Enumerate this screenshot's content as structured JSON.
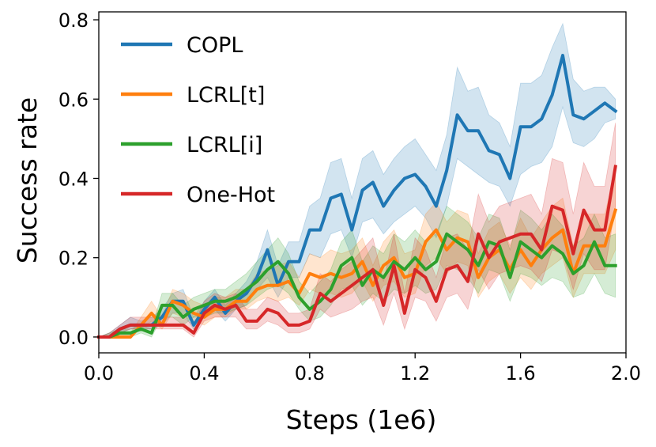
{
  "chart_data": {
    "type": "line",
    "title": "",
    "xlabel": "Steps (1e6)",
    "ylabel": "Success rate",
    "xlim": [
      0.0,
      2.0
    ],
    "ylim": [
      -0.04,
      0.82
    ],
    "xticks": [
      "0.0",
      "0.4",
      "0.8",
      "1.2",
      "1.6",
      "2.0"
    ],
    "xtick_values": [
      0.0,
      0.4,
      0.8,
      1.2,
      1.6,
      2.0
    ],
    "yticks": [
      "0.0",
      "0.2",
      "0.4",
      "0.6",
      "0.8"
    ],
    "ytick_values": [
      0.0,
      0.2,
      0.4,
      0.6,
      0.8
    ],
    "grid": false,
    "legend_position": "upper-left",
    "x": [
      0.0,
      0.04,
      0.08,
      0.12,
      0.16,
      0.2,
      0.24,
      0.28,
      0.32,
      0.36,
      0.4,
      0.44,
      0.48,
      0.52,
      0.56,
      0.6,
      0.64,
      0.68,
      0.72,
      0.76,
      0.8,
      0.84,
      0.88,
      0.92,
      0.96,
      1.0,
      1.04,
      1.08,
      1.12,
      1.16,
      1.2,
      1.24,
      1.28,
      1.32,
      1.36,
      1.4,
      1.44,
      1.48,
      1.52,
      1.56,
      1.6,
      1.64,
      1.68,
      1.72,
      1.76,
      1.8,
      1.84,
      1.88,
      1.92,
      1.96
    ],
    "series": [
      {
        "name": "COPL",
        "color": "#1f77b4",
        "values": [
          0.0,
          0.0,
          0.02,
          0.03,
          0.03,
          0.03,
          0.05,
          0.09,
          0.09,
          0.03,
          0.07,
          0.1,
          0.06,
          0.09,
          0.11,
          0.15,
          0.22,
          0.13,
          0.19,
          0.19,
          0.27,
          0.27,
          0.35,
          0.36,
          0.27,
          0.37,
          0.39,
          0.33,
          0.37,
          0.4,
          0.41,
          0.38,
          0.33,
          0.42,
          0.56,
          0.52,
          0.52,
          0.47,
          0.46,
          0.4,
          0.53,
          0.53,
          0.55,
          0.61,
          0.71,
          0.56,
          0.55,
          0.57,
          0.59,
          0.57
        ],
        "lower": [
          0.0,
          0.0,
          0.01,
          0.02,
          0.02,
          0.02,
          0.03,
          0.06,
          0.06,
          0.02,
          0.05,
          0.07,
          0.04,
          0.07,
          0.08,
          0.12,
          0.15,
          0.1,
          0.15,
          0.15,
          0.21,
          0.2,
          0.26,
          0.27,
          0.2,
          0.29,
          0.3,
          0.26,
          0.29,
          0.31,
          0.33,
          0.3,
          0.25,
          0.33,
          0.45,
          0.43,
          0.41,
          0.39,
          0.38,
          0.33,
          0.41,
          0.43,
          0.44,
          0.48,
          0.58,
          0.49,
          0.48,
          0.5,
          0.54,
          0.55
        ],
        "upper": [
          0.0,
          0.01,
          0.03,
          0.05,
          0.04,
          0.05,
          0.07,
          0.11,
          0.12,
          0.05,
          0.09,
          0.12,
          0.08,
          0.11,
          0.14,
          0.19,
          0.27,
          0.18,
          0.24,
          0.24,
          0.33,
          0.35,
          0.44,
          0.45,
          0.35,
          0.45,
          0.47,
          0.41,
          0.45,
          0.48,
          0.5,
          0.46,
          0.42,
          0.51,
          0.68,
          0.62,
          0.63,
          0.56,
          0.54,
          0.48,
          0.64,
          0.64,
          0.66,
          0.73,
          0.79,
          0.65,
          0.62,
          0.63,
          0.63,
          0.6
        ]
      },
      {
        "name": "LCRL[t]",
        "color": "#ff7f0e",
        "values": [
          0.0,
          0.0,
          0.0,
          0.0,
          0.03,
          0.06,
          0.03,
          0.09,
          0.08,
          0.06,
          0.05,
          0.07,
          0.07,
          0.09,
          0.09,
          0.12,
          0.13,
          0.13,
          0.14,
          0.11,
          0.16,
          0.15,
          0.16,
          0.15,
          0.16,
          0.19,
          0.13,
          0.18,
          0.2,
          0.15,
          0.16,
          0.24,
          0.27,
          0.22,
          0.25,
          0.24,
          0.15,
          0.2,
          0.22,
          0.17,
          0.22,
          0.18,
          0.22,
          0.25,
          0.27,
          0.16,
          0.23,
          0.23,
          0.23,
          0.32
        ],
        "lower": [
          0.0,
          0.0,
          0.0,
          0.0,
          0.02,
          0.04,
          0.02,
          0.06,
          0.05,
          0.04,
          0.03,
          0.05,
          0.05,
          0.07,
          0.07,
          0.09,
          0.1,
          0.09,
          0.1,
          0.08,
          0.12,
          0.11,
          0.11,
          0.1,
          0.11,
          0.14,
          0.09,
          0.13,
          0.14,
          0.1,
          0.11,
          0.18,
          0.2,
          0.16,
          0.19,
          0.18,
          0.1,
          0.14,
          0.16,
          0.11,
          0.15,
          0.12,
          0.16,
          0.18,
          0.2,
          0.1,
          0.16,
          0.16,
          0.16,
          0.22
        ],
        "upper": [
          0.0,
          0.0,
          0.01,
          0.01,
          0.05,
          0.09,
          0.05,
          0.12,
          0.11,
          0.09,
          0.08,
          0.1,
          0.1,
          0.12,
          0.12,
          0.16,
          0.17,
          0.18,
          0.19,
          0.15,
          0.21,
          0.2,
          0.22,
          0.21,
          0.22,
          0.25,
          0.18,
          0.24,
          0.27,
          0.21,
          0.22,
          0.31,
          0.34,
          0.29,
          0.32,
          0.31,
          0.21,
          0.27,
          0.29,
          0.23,
          0.3,
          0.25,
          0.29,
          0.33,
          0.35,
          0.23,
          0.31,
          0.31,
          0.31,
          0.42
        ]
      },
      {
        "name": "LCRL[i]",
        "color": "#2ca02c",
        "values": [
          0.0,
          0.0,
          0.01,
          0.01,
          0.02,
          0.01,
          0.08,
          0.08,
          0.05,
          0.07,
          0.08,
          0.09,
          0.09,
          0.1,
          0.12,
          0.14,
          0.17,
          0.19,
          0.16,
          0.1,
          0.07,
          0.09,
          0.12,
          0.18,
          0.2,
          0.13,
          0.17,
          0.15,
          0.19,
          0.17,
          0.2,
          0.17,
          0.19,
          0.26,
          0.24,
          0.22,
          0.18,
          0.24,
          0.23,
          0.15,
          0.24,
          0.22,
          0.2,
          0.23,
          0.21,
          0.16,
          0.18,
          0.24,
          0.18,
          0.18
        ],
        "lower": [
          0.0,
          0.0,
          0.0,
          0.0,
          0.01,
          0.0,
          0.05,
          0.05,
          0.03,
          0.05,
          0.05,
          0.06,
          0.06,
          0.07,
          0.08,
          0.1,
          0.12,
          0.13,
          0.11,
          0.07,
          0.04,
          0.05,
          0.08,
          0.12,
          0.13,
          0.08,
          0.11,
          0.09,
          0.12,
          0.11,
          0.13,
          0.11,
          0.12,
          0.18,
          0.17,
          0.15,
          0.11,
          0.17,
          0.16,
          0.09,
          0.16,
          0.15,
          0.13,
          0.15,
          0.14,
          0.1,
          0.11,
          0.16,
          0.11,
          0.1
        ],
        "upper": [
          0.0,
          0.01,
          0.02,
          0.02,
          0.03,
          0.02,
          0.11,
          0.11,
          0.08,
          0.1,
          0.11,
          0.12,
          0.12,
          0.14,
          0.16,
          0.19,
          0.22,
          0.25,
          0.21,
          0.14,
          0.11,
          0.14,
          0.17,
          0.24,
          0.27,
          0.19,
          0.23,
          0.21,
          0.26,
          0.24,
          0.27,
          0.24,
          0.26,
          0.33,
          0.31,
          0.29,
          0.25,
          0.31,
          0.3,
          0.22,
          0.32,
          0.3,
          0.27,
          0.31,
          0.28,
          0.23,
          0.25,
          0.31,
          0.25,
          0.26
        ]
      },
      {
        "name": "One-Hot",
        "color": "#d62728",
        "values": [
          0.0,
          0.0,
          0.02,
          0.03,
          0.03,
          0.03,
          0.03,
          0.03,
          0.03,
          0.01,
          0.06,
          0.08,
          0.07,
          0.08,
          0.04,
          0.04,
          0.07,
          0.06,
          0.03,
          0.03,
          0.04,
          0.11,
          0.09,
          0.11,
          0.13,
          0.15,
          0.17,
          0.08,
          0.18,
          0.06,
          0.17,
          0.15,
          0.09,
          0.17,
          0.18,
          0.14,
          0.26,
          0.2,
          0.24,
          0.25,
          0.26,
          0.26,
          0.22,
          0.33,
          0.32,
          0.21,
          0.32,
          0.27,
          0.27,
          0.43
        ],
        "lower": [
          0.0,
          0.0,
          0.01,
          0.02,
          0.02,
          0.02,
          0.02,
          0.02,
          0.02,
          0.0,
          0.04,
          0.05,
          0.05,
          0.05,
          0.02,
          0.02,
          0.04,
          0.03,
          0.01,
          0.01,
          0.02,
          0.07,
          0.05,
          0.06,
          0.07,
          0.09,
          0.1,
          0.03,
          0.11,
          0.02,
          0.1,
          0.09,
          0.04,
          0.1,
          0.11,
          0.07,
          0.17,
          0.12,
          0.16,
          0.17,
          0.18,
          0.17,
          0.14,
          0.22,
          0.21,
          0.12,
          0.21,
          0.17,
          0.17,
          0.33
        ],
        "upper": [
          0.0,
          0.01,
          0.03,
          0.05,
          0.05,
          0.05,
          0.05,
          0.05,
          0.05,
          0.03,
          0.09,
          0.11,
          0.1,
          0.11,
          0.07,
          0.07,
          0.1,
          0.09,
          0.06,
          0.06,
          0.07,
          0.16,
          0.14,
          0.17,
          0.19,
          0.22,
          0.25,
          0.14,
          0.26,
          0.11,
          0.25,
          0.22,
          0.15,
          0.25,
          0.26,
          0.22,
          0.36,
          0.29,
          0.33,
          0.34,
          0.35,
          0.36,
          0.31,
          0.45,
          0.44,
          0.31,
          0.44,
          0.38,
          0.38,
          0.54
        ]
      }
    ]
  }
}
